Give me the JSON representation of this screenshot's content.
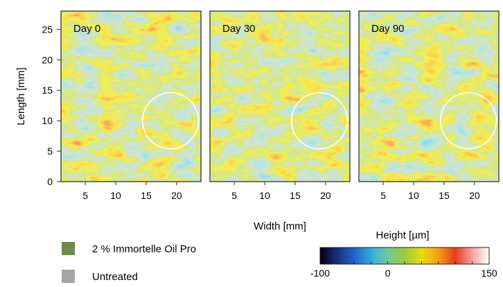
{
  "chart_data": {
    "type": "heatmap",
    "xlabel": "Width [mm]",
    "ylabel": "Length [mm]",
    "xlim": [
      1,
      24
    ],
    "ylim": [
      0,
      28
    ],
    "xticks": [
      5,
      10,
      15,
      20
    ],
    "yticks": [
      0,
      5,
      10,
      15,
      20,
      25
    ],
    "panels": [
      {
        "label": "Day 0",
        "circle": {
          "x": 19,
          "y": 10,
          "r": 4.6
        }
      },
      {
        "label": "Day 30",
        "circle": {
          "x": 19,
          "y": 10,
          "r": 4.6
        }
      },
      {
        "label": "Day 90",
        "circle": {
          "x": 19,
          "y": 10,
          "r": 4.6
        }
      }
    ],
    "colorbar": {
      "title": "Height [µm]",
      "min": -100,
      "max": 150,
      "tick_labels": [
        "-100",
        "0",
        "150"
      ],
      "tick_values": [
        -100,
        -75,
        -50,
        -25,
        0,
        25,
        50,
        75,
        100,
        125,
        150
      ],
      "colors": [
        "#000000",
        "#16246e",
        "#1e64c8",
        "#3cb4dc",
        "#6ec8a0",
        "#a0c83c",
        "#e6dc14",
        "#f5a014",
        "#e63c1e",
        "#f5a0a0",
        "#ffffff"
      ]
    },
    "legend": [
      {
        "label": "2 % Immortelle Oil Pro",
        "color": "#6e8a4c"
      },
      {
        "label": "Untreated",
        "color": "#a5a5a5"
      }
    ]
  }
}
